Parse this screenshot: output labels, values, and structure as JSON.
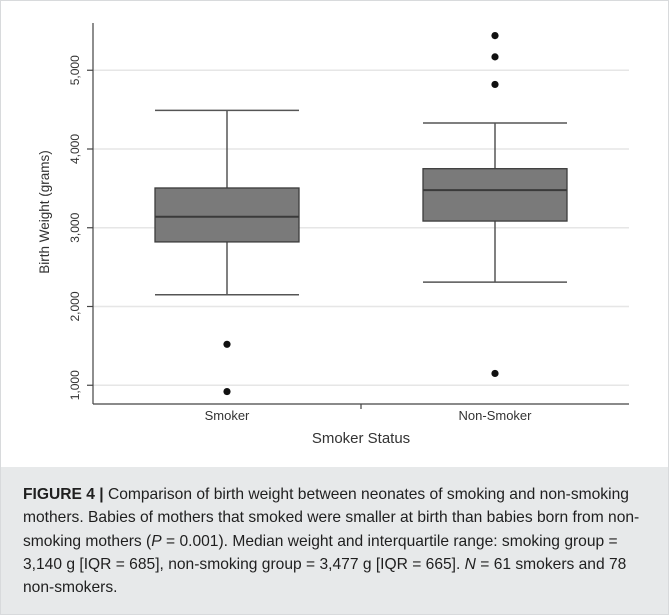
{
  "chart_data": {
    "type": "box",
    "xlabel": "Smoker Status",
    "ylabel": "Birth Weight (grams)",
    "yticks": [
      1000,
      2000,
      3000,
      4000,
      5000
    ],
    "ytick_labels": [
      "1,000",
      "2,000",
      "3,000",
      "4,000",
      "5,000"
    ],
    "ylim": [
      800,
      5600
    ],
    "grid": true,
    "categories": [
      "Smoker",
      "Non-Smoker"
    ],
    "boxes": [
      {
        "category": "Smoker",
        "whisker_low": 2150,
        "q1": 2820,
        "median": 3140,
        "q3": 3505,
        "whisker_high": 4490,
        "outliers": [
          1520,
          920
        ]
      },
      {
        "category": "Non-Smoker",
        "whisker_low": 2310,
        "q1": 3085,
        "median": 3477,
        "q3": 3750,
        "whisker_high": 4330,
        "outliers": [
          5440,
          5170,
          4820,
          1150
        ]
      }
    ]
  },
  "caption": {
    "label": "FIGURE 4 |",
    "text_1": " Comparison of birth weight between neonates of smoking and non-smoking mothers. Babies of mothers that smoked were smaller at birth than babies born from non-smoking mothers (",
    "p_symbol": "P",
    "text_2": " = 0.001). Median weight and interquartile range: smoking group = 3,140 g [IQR = 685], non-smoking group = 3,477 g [IQR = 665]. ",
    "n_symbol": "N",
    "text_3": " = 61 smokers and 78 non-smokers."
  },
  "colors": {
    "box_fill": "#7a7a7a",
    "box_stroke": "#3c3c3c",
    "whisker": "#555555",
    "outlier": "#111111",
    "grid": "#e6e6e6",
    "axis": "#444444",
    "text": "#333333",
    "caption_bg": "#e7e9ea"
  }
}
